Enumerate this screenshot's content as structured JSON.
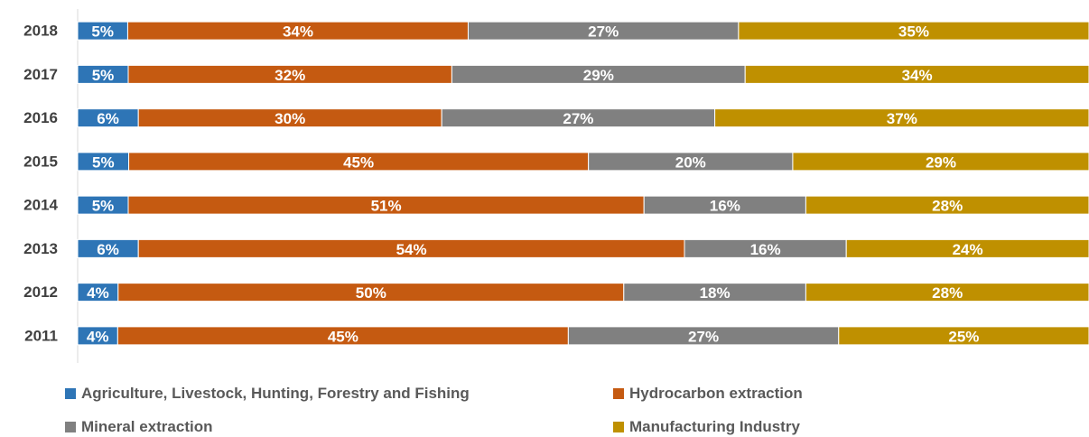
{
  "chart_data": {
    "type": "bar",
    "orientation": "horizontal",
    "stacked": "percent",
    "title": "",
    "xlabel": "",
    "ylabel": "",
    "categories": [
      "2018",
      "2017",
      "2016",
      "2015",
      "2014",
      "2013",
      "2012",
      "2011"
    ],
    "series": [
      {
        "name": "Agriculture, Livestock, Hunting, Forestry and Fishing",
        "color": "#2E75B6",
        "values": [
          5,
          5,
          6,
          5,
          5,
          6,
          4,
          4
        ],
        "labels": [
          "5%",
          "5%",
          "6%",
          "5%",
          "5%",
          "6%",
          "4%",
          "4%"
        ]
      },
      {
        "name": "Hydrocarbon extraction",
        "color": "#C55A11",
        "values": [
          34,
          32,
          30,
          45,
          51,
          54,
          50,
          45
        ],
        "labels": [
          "34%",
          "32%",
          "30%",
          "45%",
          "51%",
          "54%",
          "50%",
          "45%"
        ]
      },
      {
        "name": "Mineral extraction",
        "color": "#808080",
        "values": [
          27,
          29,
          27,
          20,
          16,
          16,
          18,
          27
        ],
        "labels": [
          "27%",
          "29%",
          "27%",
          "20%",
          "16%",
          "16%",
          "18%",
          "27%"
        ]
      },
      {
        "name": "Manufacturing Industry",
        "color": "#BF9000",
        "values": [
          35,
          34,
          37,
          29,
          28,
          24,
          28,
          25
        ],
        "labels": [
          "35%",
          "34%",
          "37%",
          "29%",
          "28%",
          "24%",
          "28%",
          "25%"
        ]
      }
    ],
    "xlim": [
      0,
      100
    ],
    "grid": false,
    "legend_position": "bottom"
  }
}
